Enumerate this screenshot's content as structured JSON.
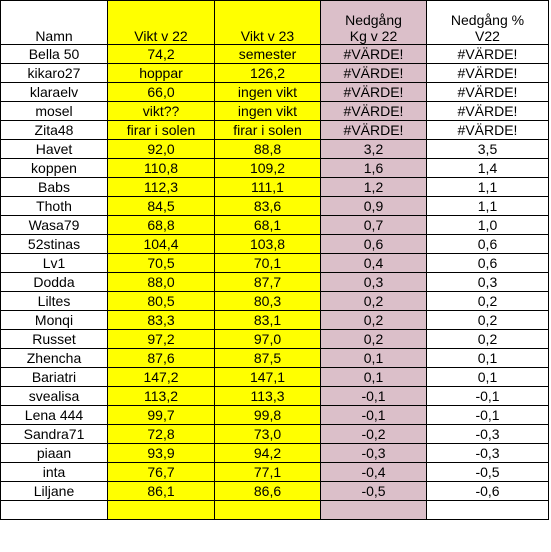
{
  "colors": {
    "yellow": "#ffff00",
    "pink": "#dbbfc9",
    "grid": "#000000"
  },
  "headers": {
    "name": "Namn",
    "v22": "Vikt v 22",
    "v23": "Vikt v 23",
    "kg_line1": "Nedgång",
    "kg_line2": "Kg v 22",
    "pct_line1": "Nedgång %",
    "pct_line2": "V22"
  },
  "rows": [
    {
      "name": "Bella 50",
      "v22": "74,2",
      "v23": "semester",
      "kg": "#VÄRDE!",
      "pct": "#VÄRDE!"
    },
    {
      "name": "kikaro27",
      "v22": "hoppar",
      "v23": "126,2",
      "kg": "#VÄRDE!",
      "pct": "#VÄRDE!"
    },
    {
      "name": "klaraelv",
      "v22": "66,0",
      "v23": "ingen vikt",
      "kg": "#VÄRDE!",
      "pct": "#VÄRDE!"
    },
    {
      "name": "mosel",
      "v22": "vikt??",
      "v23": "ingen vikt",
      "kg": "#VÄRDE!",
      "pct": "#VÄRDE!"
    },
    {
      "name": "Zita48",
      "v22": "firar i solen",
      "v23": "firar i solen",
      "kg": "#VÄRDE!",
      "pct": "#VÄRDE!"
    },
    {
      "name": "Havet",
      "v22": "92,0",
      "v23": "88,8",
      "kg": "3,2",
      "pct": "3,5"
    },
    {
      "name": "koppen",
      "v22": "110,8",
      "v23": "109,2",
      "kg": "1,6",
      "pct": "1,4"
    },
    {
      "name": "Babs",
      "v22": "112,3",
      "v23": "111,1",
      "kg": "1,2",
      "pct": "1,1"
    },
    {
      "name": "Thoth",
      "v22": "84,5",
      "v23": "83,6",
      "kg": "0,9",
      "pct": "1,1"
    },
    {
      "name": "Wasa79",
      "v22": "68,8",
      "v23": "68,1",
      "kg": "0,7",
      "pct": "1,0"
    },
    {
      "name": "52stinas",
      "v22": "104,4",
      "v23": "103,8",
      "kg": "0,6",
      "pct": "0,6"
    },
    {
      "name": "Lv1",
      "v22": "70,5",
      "v23": "70,1",
      "kg": "0,4",
      "pct": "0,6"
    },
    {
      "name": "Dodda",
      "v22": "88,0",
      "v23": "87,7",
      "kg": "0,3",
      "pct": "0,3"
    },
    {
      "name": "Liltes",
      "v22": "80,5",
      "v23": "80,3",
      "kg": "0,2",
      "pct": "0,2"
    },
    {
      "name": "Monqi",
      "v22": "83,3",
      "v23": "83,1",
      "kg": "0,2",
      "pct": "0,2"
    },
    {
      "name": "Russet",
      "v22": "97,2",
      "v23": "97,0",
      "kg": "0,2",
      "pct": "0,2"
    },
    {
      "name": "Zhencha",
      "v22": "87,6",
      "v23": "87,5",
      "kg": "0,1",
      "pct": "0,1"
    },
    {
      "name": "Bariatri",
      "v22": "147,2",
      "v23": "147,1",
      "kg": "0,1",
      "pct": "0,1"
    },
    {
      "name": "svealisa",
      "v22": "113,2",
      "v23": "113,3",
      "kg": "-0,1",
      "pct": "-0,1"
    },
    {
      "name": "Lena 444",
      "v22": "99,7",
      "v23": "99,8",
      "kg": "-0,1",
      "pct": "-0,1"
    },
    {
      "name": "Sandra71",
      "v22": "72,8",
      "v23": "73,0",
      "kg": "-0,2",
      "pct": "-0,3"
    },
    {
      "name": "piaan",
      "v22": "93,9",
      "v23": "94,2",
      "kg": "-0,3",
      "pct": "-0,3"
    },
    {
      "name": "inta",
      "v22": "76,7",
      "v23": "77,1",
      "kg": "-0,4",
      "pct": "-0,5"
    },
    {
      "name": "Liljane",
      "v22": "86,1",
      "v23": "86,6",
      "kg": "-0,5",
      "pct": "-0,6"
    },
    {
      "name": "",
      "v22": "",
      "v23": "",
      "kg": "",
      "pct": ""
    }
  ]
}
